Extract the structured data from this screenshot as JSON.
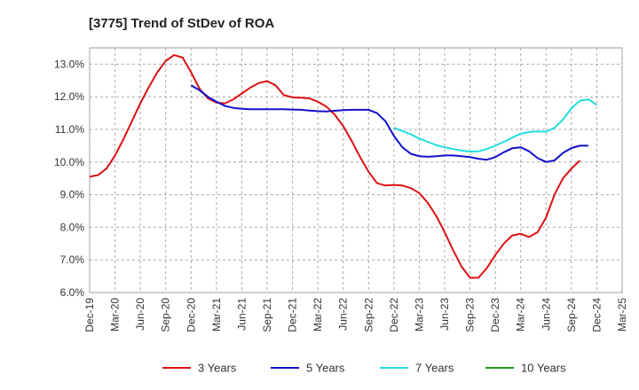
{
  "chart_data": {
    "type": "line",
    "title": "[3775]  Trend of StDev of ROA",
    "xlabel": "",
    "ylabel": "",
    "ylim": [
      6.0,
      13.5
    ],
    "yticks": [
      6.0,
      7.0,
      8.0,
      9.0,
      10.0,
      11.0,
      12.0,
      13.0
    ],
    "ytick_labels": [
      "6.0%",
      "7.0%",
      "8.0%",
      "9.0%",
      "10.0%",
      "11.0%",
      "12.0%",
      "13.0%"
    ],
    "xlim": [
      "Dec-19",
      "Mar-25"
    ],
    "xticks": [
      "Dec-19",
      "Mar-20",
      "Jun-20",
      "Sep-20",
      "Dec-20",
      "Mar-21",
      "Jun-21",
      "Sep-21",
      "Dec-21",
      "Mar-22",
      "Jun-22",
      "Sep-22",
      "Dec-22",
      "Mar-23",
      "Jun-23",
      "Sep-23",
      "Dec-23",
      "Mar-24",
      "Jun-24",
      "Sep-24",
      "Dec-24",
      "Mar-25"
    ],
    "grid": true,
    "legend_position": "bottom",
    "series": [
      {
        "name": "3 Years",
        "color": "#dd1111",
        "x": [
          "Dec-19",
          "Jan-20",
          "Feb-20",
          "Mar-20",
          "Apr-20",
          "May-20",
          "Jun-20",
          "Jul-20",
          "Aug-20",
          "Sep-20",
          "Oct-20",
          "Nov-20",
          "Dec-20",
          "Jan-21",
          "Feb-21",
          "Mar-21",
          "Apr-21",
          "May-21",
          "Jun-21",
          "Jul-21",
          "Aug-21",
          "Sep-21",
          "Oct-21",
          "Nov-21",
          "Dec-21",
          "Jan-22",
          "Feb-22",
          "Mar-22",
          "Apr-22",
          "May-22",
          "Jun-22",
          "Jul-22",
          "Aug-22",
          "Sep-22",
          "Oct-22",
          "Nov-22",
          "Dec-22",
          "Jan-23",
          "Feb-23",
          "Mar-23",
          "Apr-23",
          "May-23",
          "Jun-23",
          "Jul-23",
          "Aug-23",
          "Sep-23",
          "Oct-23",
          "Nov-23",
          "Dec-23",
          "Jan-24",
          "Feb-24",
          "Mar-24",
          "Apr-24",
          "May-24",
          "Jun-24",
          "Jul-24",
          "Aug-24",
          "Sep-24",
          "Oct-24",
          "Nov-24",
          "Dec-24"
        ],
        "values": [
          9.55,
          9.6,
          9.8,
          10.2,
          10.7,
          11.25,
          11.8,
          12.3,
          12.75,
          13.1,
          13.28,
          13.2,
          12.75,
          12.25,
          11.95,
          11.82,
          11.8,
          11.92,
          12.1,
          12.28,
          12.42,
          12.48,
          12.35,
          12.05,
          11.98,
          11.97,
          11.95,
          11.85,
          11.7,
          11.45,
          11.1,
          10.65,
          10.15,
          9.7,
          9.35,
          9.28,
          9.3,
          9.28,
          9.2,
          9.05,
          8.75,
          8.35,
          7.85,
          7.3,
          6.8,
          6.45,
          6.45,
          6.75,
          7.15,
          7.5,
          7.75,
          7.8,
          7.7,
          7.85,
          8.3,
          9.0,
          9.5,
          9.8,
          10.05,
          null,
          null
        ],
        "values_note": ""
      },
      {
        "name": "5 Years",
        "color": "#1111cc",
        "x": [
          "Dec-20",
          "Jan-21",
          "Feb-21",
          "Mar-21",
          "Apr-21",
          "May-21",
          "Jun-21",
          "Jul-21",
          "Aug-21",
          "Sep-21",
          "Oct-21",
          "Nov-21",
          "Dec-21",
          "Jan-22",
          "Feb-22",
          "Mar-22",
          "Apr-22",
          "May-22",
          "Jun-22",
          "Jul-22",
          "Aug-22",
          "Sep-22",
          "Oct-22",
          "Nov-22",
          "Dec-22",
          "Jan-23",
          "Feb-23",
          "Mar-23",
          "Apr-23",
          "May-23",
          "Jun-23",
          "Jul-23",
          "Aug-23",
          "Sep-23",
          "Oct-23",
          "Nov-23",
          "Dec-23",
          "Jan-24",
          "Feb-24",
          "Mar-24",
          "Apr-24",
          "May-24",
          "Jun-24",
          "Jul-24",
          "Aug-24",
          "Sep-24",
          "Oct-24",
          "Nov-24",
          "Dec-24"
        ],
        "values": [
          12.35,
          12.2,
          12.0,
          11.85,
          11.72,
          11.66,
          11.63,
          11.62,
          11.62,
          11.62,
          11.62,
          11.62,
          11.61,
          11.6,
          11.58,
          11.56,
          11.55,
          11.57,
          11.59,
          11.6,
          11.6,
          11.6,
          11.5,
          11.25,
          10.8,
          10.45,
          10.25,
          10.18,
          10.16,
          10.18,
          10.2,
          10.2,
          10.18,
          10.15,
          10.1,
          10.07,
          10.15,
          10.3,
          10.42,
          10.45,
          10.33,
          10.12,
          10.0,
          10.05,
          10.28,
          10.43,
          10.5,
          10.5,
          null
        ]
      },
      {
        "name": "7 Years",
        "color": "#22dddd",
        "x": [
          "Dec-22",
          "Jan-23",
          "Feb-23",
          "Mar-23",
          "Apr-23",
          "May-23",
          "Jun-23",
          "Jul-23",
          "Aug-23",
          "Sep-23",
          "Oct-23",
          "Nov-23",
          "Dec-23",
          "Jan-24",
          "Feb-24",
          "Mar-24",
          "Apr-24",
          "May-24",
          "Jun-24",
          "Jul-24",
          "Aug-24",
          "Sep-24",
          "Oct-24",
          "Nov-24",
          "Dec-24"
        ],
        "values": [
          11.05,
          10.95,
          10.85,
          10.72,
          10.62,
          10.52,
          10.45,
          10.4,
          10.35,
          10.32,
          10.33,
          10.4,
          10.5,
          10.62,
          10.75,
          10.87,
          10.92,
          10.94,
          10.93,
          11.05,
          11.3,
          11.65,
          11.88,
          11.92,
          11.75
        ]
      },
      {
        "name": "10 Years",
        "color": "#229922",
        "x": [],
        "values": []
      }
    ]
  }
}
